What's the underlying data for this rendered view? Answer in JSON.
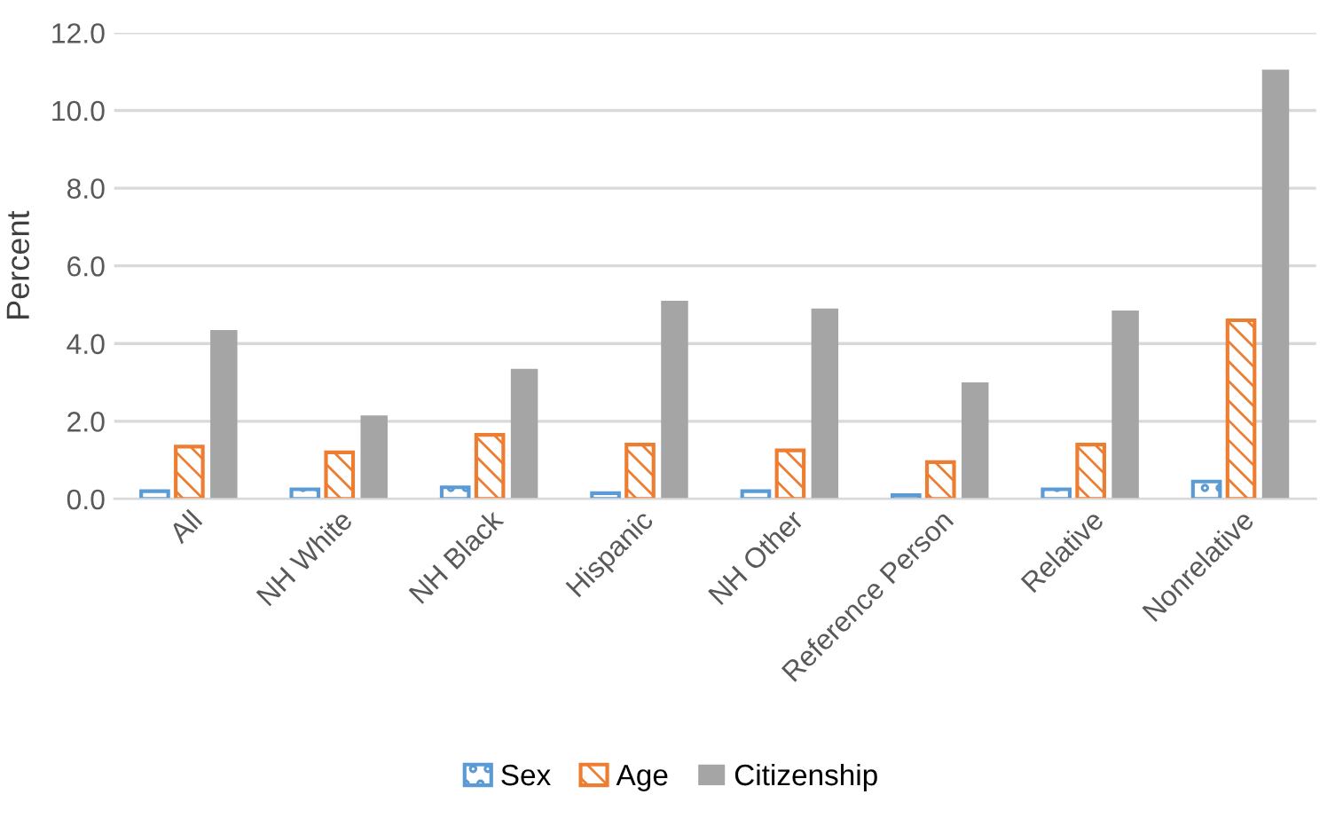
{
  "chart_data": {
    "type": "bar",
    "ylabel": "Percent",
    "categories": [
      "All",
      "NH White",
      "NH Black",
      "Hispanic",
      "NH Other",
      "Reference Person",
      "Relative",
      "Nonrelative"
    ],
    "series": [
      {
        "name": "Sex",
        "color": "#5b9bd5",
        "values": [
          0.2,
          0.25,
          0.3,
          0.15,
          0.2,
          0.1,
          0.25,
          0.45
        ]
      },
      {
        "name": "Age",
        "color": "#ed7d31",
        "values": [
          1.35,
          1.2,
          1.65,
          1.4,
          1.25,
          0.95,
          1.4,
          4.6
        ]
      },
      {
        "name": "Citizenship",
        "color": "#a5a5a5",
        "values": [
          4.35,
          2.15,
          3.35,
          5.1,
          4.9,
          3.0,
          4.85,
          11.05
        ]
      }
    ],
    "ylim": [
      0,
      12
    ],
    "yticks": [
      {
        "value": 0,
        "label": "0.0"
      },
      {
        "value": 2,
        "label": "2.0"
      },
      {
        "value": 4,
        "label": "4.0"
      },
      {
        "value": 6,
        "label": "6.0"
      },
      {
        "value": 8,
        "label": "8.0"
      },
      {
        "value": 10,
        "label": "10.0"
      },
      {
        "value": 12,
        "label": "12.0"
      }
    ],
    "grid": "y",
    "legend": "bottom"
  }
}
